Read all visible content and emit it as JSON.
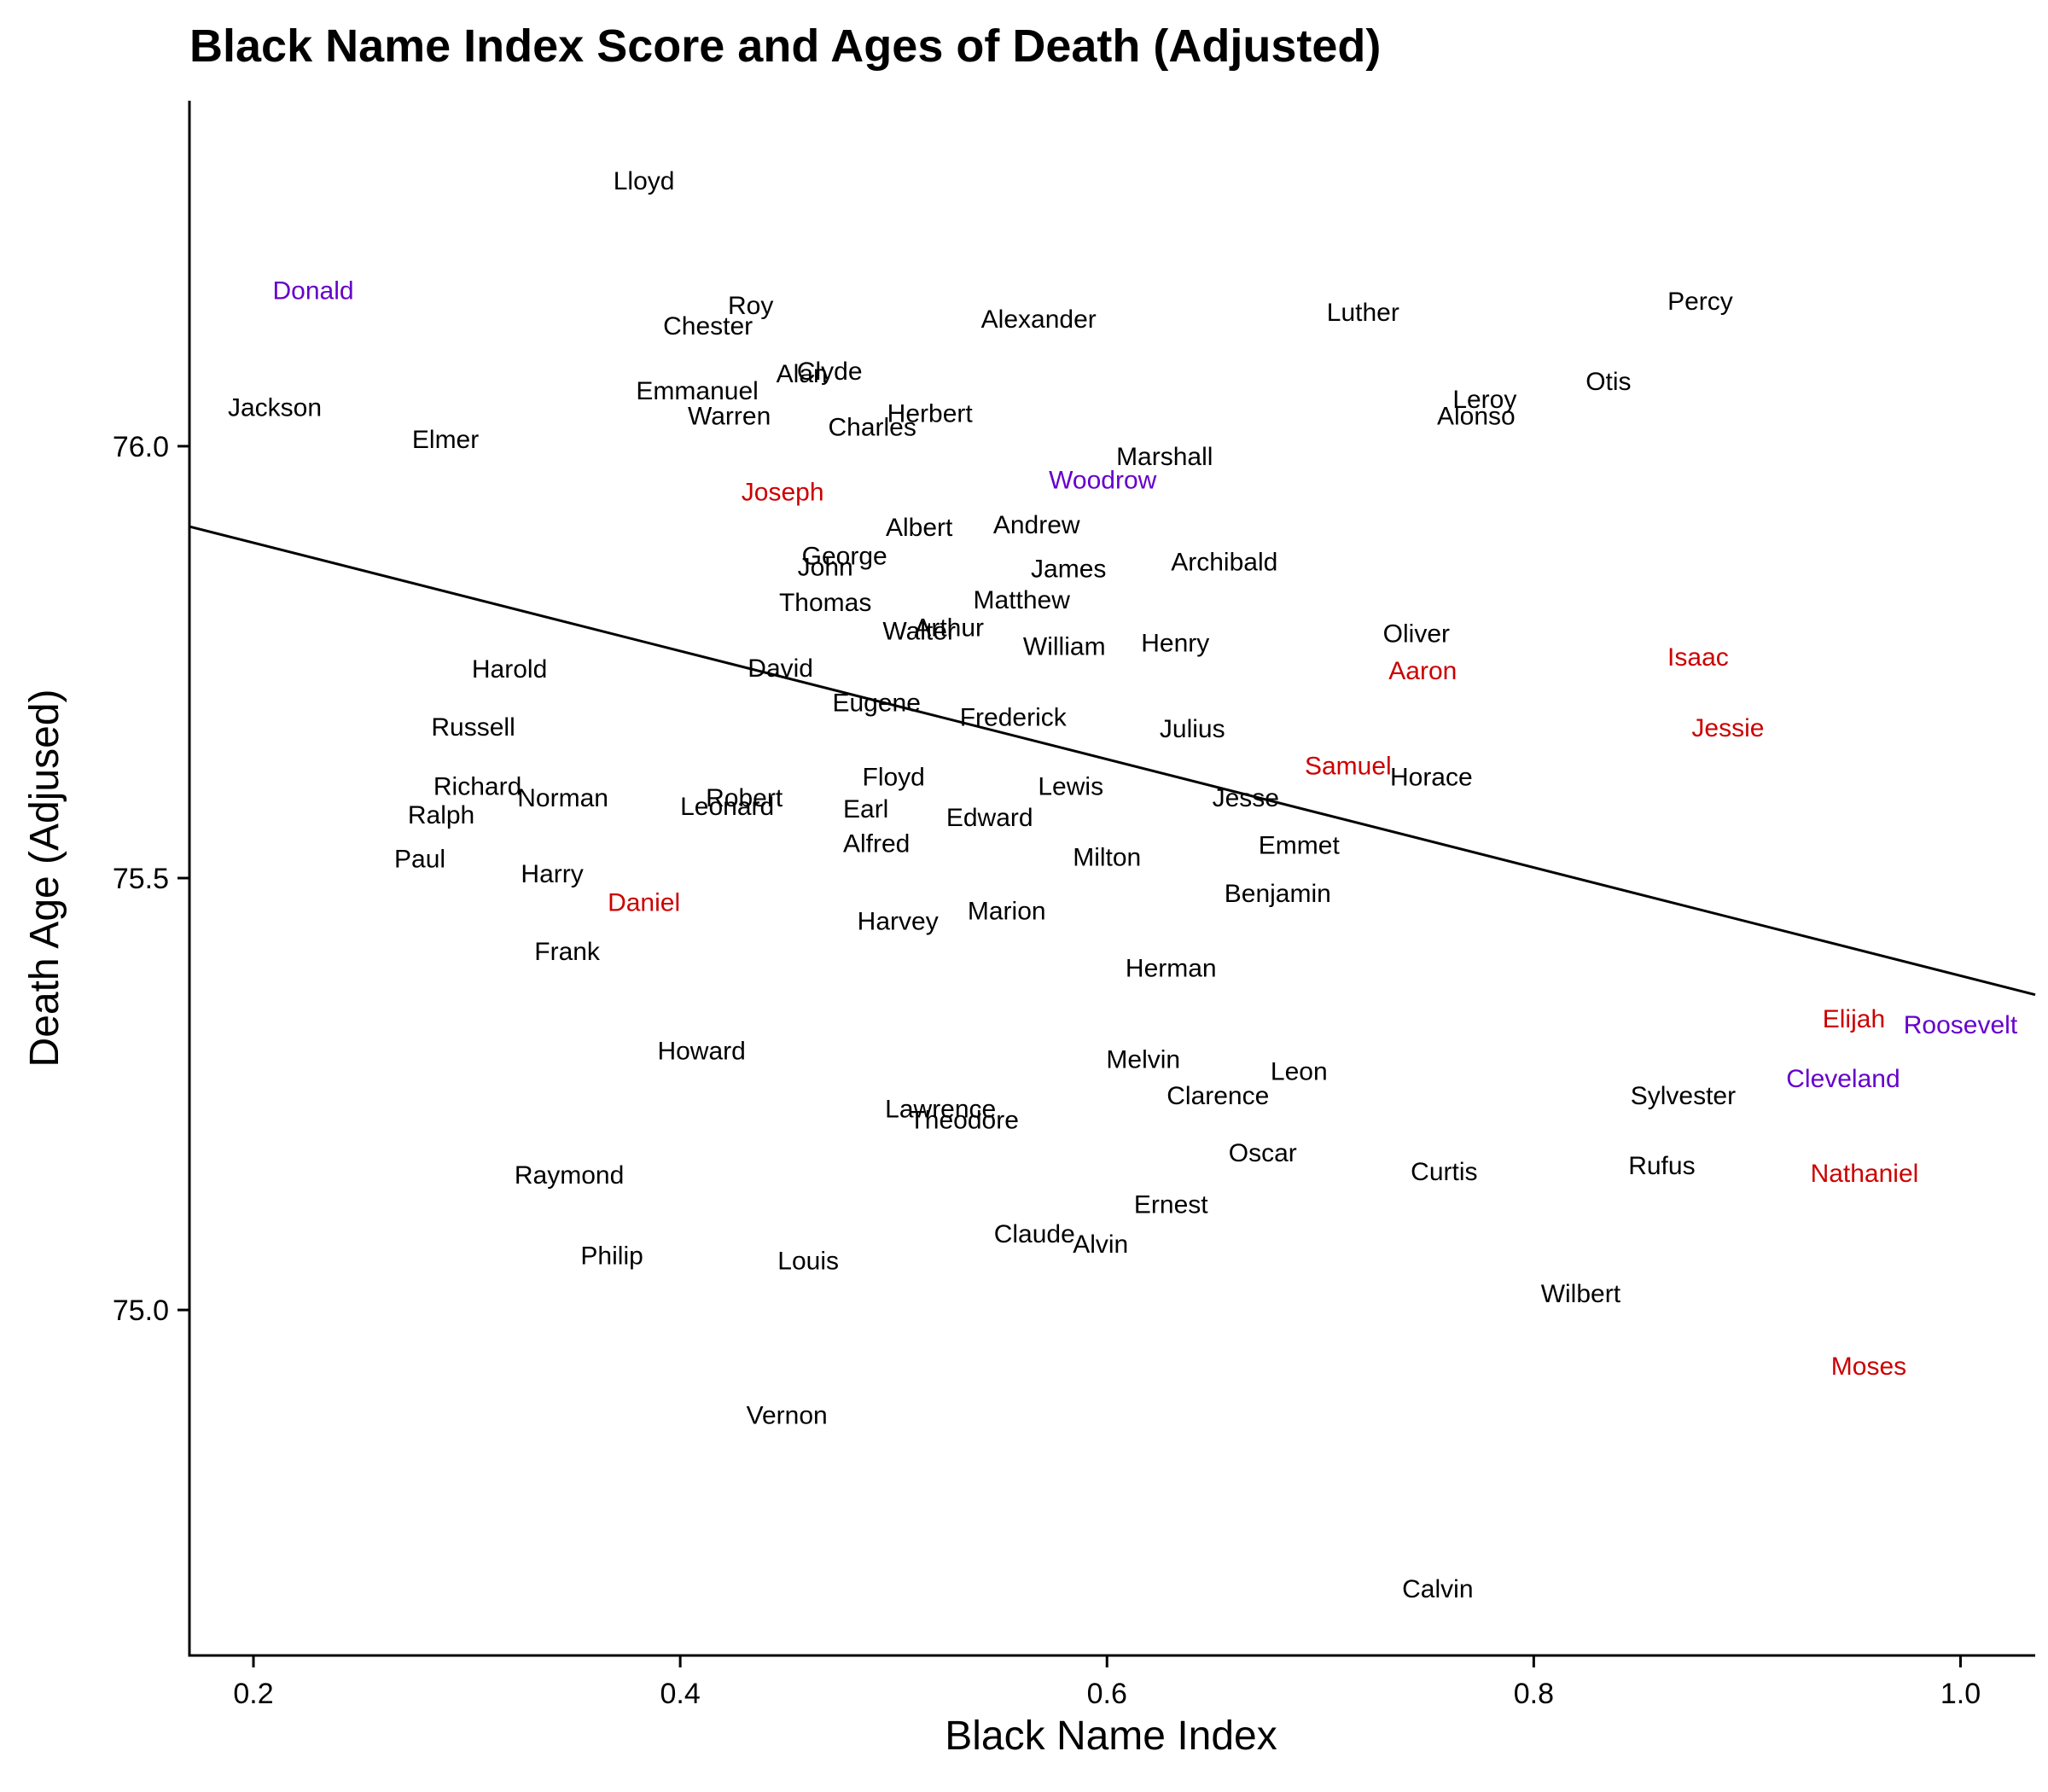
{
  "chart_data": {
    "type": "scatter",
    "title": "Black Name Index Score and Ages of Death (Adjusted)",
    "xlabel": "Black Name Index",
    "ylabel": "Death Age (Adjused)",
    "xlim": [
      0.17,
      1.035
    ],
    "ylim": [
      74.6,
      76.4
    ],
    "x_ticks": [
      {
        "value": 0.2,
        "label": "0.2"
      },
      {
        "value": 0.4,
        "label": "0.4"
      },
      {
        "value": 0.6,
        "label": "0.6"
      },
      {
        "value": 0.8,
        "label": "0.8"
      },
      {
        "value": 1.0,
        "label": "1.0"
      }
    ],
    "y_ticks": [
      {
        "value": 75.0,
        "label": "75.0"
      },
      {
        "value": 75.5,
        "label": "75.5"
      },
      {
        "value": 76.0,
        "label": "76.0"
      }
    ],
    "grid": false,
    "colors": {
      "default": "#000000",
      "red": "#cc0000",
      "purple": "#6600cc"
    },
    "trend_line": {
      "x": [
        0.17,
        1.035
      ],
      "y": [
        75.907,
        75.365
      ]
    },
    "points": [
      {
        "label": "Lloyd",
        "x": 0.383,
        "y": 76.307,
        "color": "default"
      },
      {
        "label": "Donald",
        "x": 0.228,
        "y": 76.18,
        "color": "purple"
      },
      {
        "label": "Roy",
        "x": 0.433,
        "y": 76.163,
        "color": "default"
      },
      {
        "label": "Chester",
        "x": 0.413,
        "y": 76.139,
        "color": "default"
      },
      {
        "label": "Alexander",
        "x": 0.568,
        "y": 76.147,
        "color": "default"
      },
      {
        "label": "Luther",
        "x": 0.72,
        "y": 76.155,
        "color": "default"
      },
      {
        "label": "Percy",
        "x": 0.878,
        "y": 76.168,
        "color": "default"
      },
      {
        "label": "Clyde",
        "x": 0.47,
        "y": 76.087,
        "color": "default"
      },
      {
        "label": "Alan",
        "x": 0.457,
        "y": 76.084,
        "color": "default"
      },
      {
        "label": "Emmanuel",
        "x": 0.408,
        "y": 76.064,
        "color": "default"
      },
      {
        "label": "Otis",
        "x": 0.835,
        "y": 76.075,
        "color": "default"
      },
      {
        "label": "Jackson",
        "x": 0.21,
        "y": 76.045,
        "color": "default"
      },
      {
        "label": "Leroy",
        "x": 0.777,
        "y": 76.054,
        "color": "default"
      },
      {
        "label": "Warren",
        "x": 0.423,
        "y": 76.035,
        "color": "default"
      },
      {
        "label": "Herbert",
        "x": 0.517,
        "y": 76.038,
        "color": "default"
      },
      {
        "label": "Alonso",
        "x": 0.773,
        "y": 76.035,
        "color": "default"
      },
      {
        "label": "Charles",
        "x": 0.49,
        "y": 76.022,
        "color": "default"
      },
      {
        "label": "Elmer",
        "x": 0.29,
        "y": 76.008,
        "color": "default"
      },
      {
        "label": "Marshall",
        "x": 0.627,
        "y": 75.988,
        "color": "default"
      },
      {
        "label": "Woodrow",
        "x": 0.598,
        "y": 75.961,
        "color": "purple"
      },
      {
        "label": "Joseph",
        "x": 0.448,
        "y": 75.947,
        "color": "red"
      },
      {
        "label": "Andrew",
        "x": 0.567,
        "y": 75.909,
        "color": "default"
      },
      {
        "label": "Albert",
        "x": 0.512,
        "y": 75.906,
        "color": "default"
      },
      {
        "label": "George",
        "x": 0.477,
        "y": 75.873,
        "color": "default"
      },
      {
        "label": "John",
        "x": 0.468,
        "y": 75.86,
        "color": "default"
      },
      {
        "label": "Archibald",
        "x": 0.655,
        "y": 75.866,
        "color": "default"
      },
      {
        "label": "James",
        "x": 0.582,
        "y": 75.858,
        "color": "default"
      },
      {
        "label": "Matthew",
        "x": 0.56,
        "y": 75.822,
        "color": "default"
      },
      {
        "label": "Thomas",
        "x": 0.468,
        "y": 75.819,
        "color": "default"
      },
      {
        "label": "Walter",
        "x": 0.512,
        "y": 75.786,
        "color": "default"
      },
      {
        "label": "Arthur",
        "x": 0.526,
        "y": 75.79,
        "color": "default"
      },
      {
        "label": "Oliver",
        "x": 0.745,
        "y": 75.783,
        "color": "default"
      },
      {
        "label": "William",
        "x": 0.58,
        "y": 75.768,
        "color": "default"
      },
      {
        "label": "Henry",
        "x": 0.632,
        "y": 75.772,
        "color": "default"
      },
      {
        "label": "Isaac",
        "x": 0.877,
        "y": 75.756,
        "color": "red"
      },
      {
        "label": "Harold",
        "x": 0.32,
        "y": 75.742,
        "color": "default"
      },
      {
        "label": "David",
        "x": 0.447,
        "y": 75.743,
        "color": "default"
      },
      {
        "label": "Aaron",
        "x": 0.748,
        "y": 75.74,
        "color": "red"
      },
      {
        "label": "Eugene",
        "x": 0.492,
        "y": 75.703,
        "color": "default"
      },
      {
        "label": "Frederick",
        "x": 0.556,
        "y": 75.686,
        "color": "default"
      },
      {
        "label": "Russell",
        "x": 0.303,
        "y": 75.675,
        "color": "default"
      },
      {
        "label": "Julius",
        "x": 0.64,
        "y": 75.673,
        "color": "default"
      },
      {
        "label": "Jessie",
        "x": 0.891,
        "y": 75.674,
        "color": "red"
      },
      {
        "label": "Samuel",
        "x": 0.713,
        "y": 75.63,
        "color": "red"
      },
      {
        "label": "Floyd",
        "x": 0.5,
        "y": 75.617,
        "color": "default"
      },
      {
        "label": "Horace",
        "x": 0.752,
        "y": 75.617,
        "color": "default"
      },
      {
        "label": "Richard",
        "x": 0.305,
        "y": 75.606,
        "color": "default"
      },
      {
        "label": "Lewis",
        "x": 0.583,
        "y": 75.606,
        "color": "default"
      },
      {
        "label": "Norman",
        "x": 0.345,
        "y": 75.593,
        "color": "default"
      },
      {
        "label": "Robert",
        "x": 0.43,
        "y": 75.593,
        "color": "default"
      },
      {
        "label": "Jesse",
        "x": 0.665,
        "y": 75.593,
        "color": "default"
      },
      {
        "label": "Leonard",
        "x": 0.422,
        "y": 75.583,
        "color": "default"
      },
      {
        "label": "Earl",
        "x": 0.487,
        "y": 75.58,
        "color": "default"
      },
      {
        "label": "Ralph",
        "x": 0.288,
        "y": 75.573,
        "color": "default"
      },
      {
        "label": "Edward",
        "x": 0.545,
        "y": 75.57,
        "color": "default"
      },
      {
        "label": "Emmet",
        "x": 0.69,
        "y": 75.538,
        "color": "default"
      },
      {
        "label": "Alfred",
        "x": 0.492,
        "y": 75.54,
        "color": "default"
      },
      {
        "label": "Milton",
        "x": 0.6,
        "y": 75.524,
        "color": "default"
      },
      {
        "label": "Paul",
        "x": 0.278,
        "y": 75.522,
        "color": "default"
      },
      {
        "label": "Harry",
        "x": 0.34,
        "y": 75.505,
        "color": "default"
      },
      {
        "label": "Benjamin",
        "x": 0.68,
        "y": 75.482,
        "color": "default"
      },
      {
        "label": "Daniel",
        "x": 0.383,
        "y": 75.472,
        "color": "red"
      },
      {
        "label": "Marion",
        "x": 0.553,
        "y": 75.462,
        "color": "default"
      },
      {
        "label": "Harvey",
        "x": 0.502,
        "y": 75.45,
        "color": "default"
      },
      {
        "label": "Frank",
        "x": 0.347,
        "y": 75.415,
        "color": "default"
      },
      {
        "label": "Herman",
        "x": 0.63,
        "y": 75.396,
        "color": "default"
      },
      {
        "label": "Elijah",
        "x": 0.95,
        "y": 75.337,
        "color": "red"
      },
      {
        "label": "Roosevelt",
        "x": 1.0,
        "y": 75.33,
        "color": "purple"
      },
      {
        "label": "Howard",
        "x": 0.41,
        "y": 75.3,
        "color": "default"
      },
      {
        "label": "Melvin",
        "x": 0.617,
        "y": 75.29,
        "color": "default"
      },
      {
        "label": "Leon",
        "x": 0.69,
        "y": 75.276,
        "color": "default"
      },
      {
        "label": "Cleveland",
        "x": 0.945,
        "y": 75.268,
        "color": "purple"
      },
      {
        "label": "Clarence",
        "x": 0.652,
        "y": 75.248,
        "color": "default"
      },
      {
        "label": "Sylvester",
        "x": 0.87,
        "y": 75.248,
        "color": "default"
      },
      {
        "label": "Lawrence",
        "x": 0.522,
        "y": 75.233,
        "color": "default"
      },
      {
        "label": "Theodore",
        "x": 0.533,
        "y": 75.22,
        "color": "default"
      },
      {
        "label": "Oscar",
        "x": 0.673,
        "y": 75.182,
        "color": "default"
      },
      {
        "label": "Rufus",
        "x": 0.86,
        "y": 75.167,
        "color": "default"
      },
      {
        "label": "Curtis",
        "x": 0.758,
        "y": 75.16,
        "color": "default"
      },
      {
        "label": "Nathaniel",
        "x": 0.955,
        "y": 75.158,
        "color": "red"
      },
      {
        "label": "Raymond",
        "x": 0.348,
        "y": 75.156,
        "color": "default"
      },
      {
        "label": "Ernest",
        "x": 0.63,
        "y": 75.122,
        "color": "default"
      },
      {
        "label": "Claude",
        "x": 0.566,
        "y": 75.088,
        "color": "default"
      },
      {
        "label": "Alvin",
        "x": 0.597,
        "y": 75.076,
        "color": "default"
      },
      {
        "label": "Philip",
        "x": 0.368,
        "y": 75.063,
        "color": "default"
      },
      {
        "label": "Louis",
        "x": 0.46,
        "y": 75.057,
        "color": "default"
      },
      {
        "label": "Wilbert",
        "x": 0.822,
        "y": 75.019,
        "color": "default"
      },
      {
        "label": "Moses",
        "x": 0.957,
        "y": 74.935,
        "color": "red"
      },
      {
        "label": "Vernon",
        "x": 0.45,
        "y": 74.878,
        "color": "default"
      },
      {
        "label": "Calvin",
        "x": 0.755,
        "y": 74.677,
        "color": "default"
      }
    ]
  }
}
